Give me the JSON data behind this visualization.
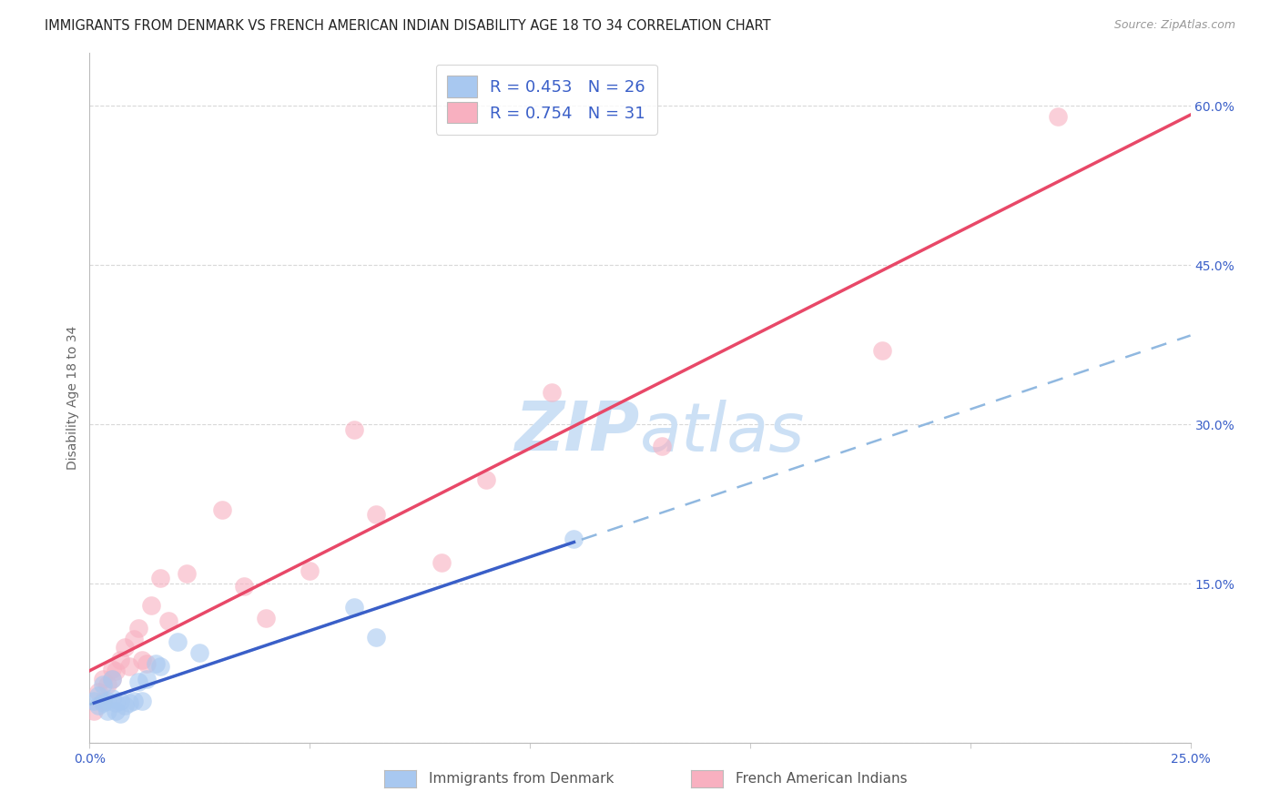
{
  "title": "IMMIGRANTS FROM DENMARK VS FRENCH AMERICAN INDIAN DISABILITY AGE 18 TO 34 CORRELATION CHART",
  "source": "Source: ZipAtlas.com",
  "ylabel": "Disability Age 18 to 34",
  "xlim": [
    0.0,
    0.25
  ],
  "ylim": [
    0.0,
    0.65
  ],
  "xticks": [
    0.0,
    0.05,
    0.1,
    0.15,
    0.2,
    0.25
  ],
  "xtick_labels": [
    "0.0%",
    "",
    "",
    "",
    "",
    "25.0%"
  ],
  "yticks_right": [
    0.0,
    0.15,
    0.3,
    0.45,
    0.6
  ],
  "ytick_labels_right": [
    "",
    "15.0%",
    "30.0%",
    "45.0%",
    "60.0%"
  ],
  "blue_R": 0.453,
  "blue_N": 26,
  "pink_R": 0.754,
  "pink_N": 31,
  "blue_scatter_color": "#a8c8f0",
  "pink_scatter_color": "#f8b0c0",
  "blue_line_color": "#3a5fc8",
  "pink_line_color": "#e84868",
  "blue_dashed_color": "#90b8e0",
  "grid_color": "#d8d8d8",
  "watermark_text_color": "#cce0f5",
  "legend_text_color": "#3a5fc8",
  "title_color": "#222222",
  "source_color": "#999999",
  "ylabel_color": "#666666",
  "bottom_legend_blue": "Immigrants from Denmark",
  "bottom_legend_pink": "French American Indians",
  "blue_scatter_x": [
    0.001,
    0.002,
    0.002,
    0.003,
    0.003,
    0.004,
    0.004,
    0.005,
    0.005,
    0.006,
    0.006,
    0.007,
    0.007,
    0.008,
    0.009,
    0.01,
    0.011,
    0.012,
    0.013,
    0.015,
    0.016,
    0.02,
    0.025,
    0.06,
    0.065,
    0.11
  ],
  "blue_scatter_y": [
    0.04,
    0.035,
    0.045,
    0.038,
    0.055,
    0.03,
    0.04,
    0.042,
    0.06,
    0.038,
    0.03,
    0.028,
    0.04,
    0.035,
    0.038,
    0.04,
    0.058,
    0.04,
    0.06,
    0.075,
    0.072,
    0.095,
    0.085,
    0.128,
    0.1,
    0.192
  ],
  "pink_scatter_x": [
    0.001,
    0.002,
    0.003,
    0.003,
    0.004,
    0.005,
    0.005,
    0.006,
    0.007,
    0.008,
    0.009,
    0.01,
    0.011,
    0.012,
    0.013,
    0.014,
    0.016,
    0.018,
    0.022,
    0.03,
    0.035,
    0.04,
    0.05,
    0.06,
    0.065,
    0.08,
    0.09,
    0.105,
    0.13,
    0.18,
    0.22
  ],
  "pink_scatter_y": [
    0.03,
    0.048,
    0.04,
    0.06,
    0.055,
    0.06,
    0.07,
    0.068,
    0.078,
    0.09,
    0.072,
    0.098,
    0.108,
    0.078,
    0.075,
    0.13,
    0.155,
    0.115,
    0.16,
    0.22,
    0.148,
    0.118,
    0.162,
    0.295,
    0.215,
    0.17,
    0.248,
    0.33,
    0.28,
    0.37,
    0.59
  ]
}
